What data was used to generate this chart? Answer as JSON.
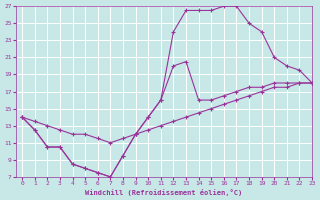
{
  "xlabel": "Windchill (Refroidissement éolien,°C)",
  "bg_color": "#c8e8e8",
  "grid_color": "#ffffff",
  "line_color": "#993399",
  "line1_x": [
    0,
    1,
    2,
    3,
    4,
    5,
    6,
    7,
    8,
    9,
    10,
    11,
    12,
    13,
    14,
    15,
    16,
    17,
    18,
    19,
    20,
    21,
    22,
    23
  ],
  "line1_y": [
    14,
    12.5,
    10.5,
    10.5,
    8.5,
    8.0,
    7.5,
    7.0,
    9.5,
    12.0,
    14.0,
    16.0,
    24.0,
    26.5,
    26.5,
    26.5,
    27.0,
    27.0,
    25.0,
    24.0,
    21.0,
    20.0,
    19.5,
    18.0
  ],
  "line2_x": [
    0,
    1,
    2,
    3,
    4,
    5,
    6,
    7,
    8,
    9,
    10,
    11,
    12,
    13,
    14,
    15,
    16,
    17,
    18,
    19,
    20,
    21,
    22,
    23
  ],
  "line2_y": [
    14,
    12.5,
    10.5,
    10.5,
    8.5,
    8.0,
    7.5,
    7.0,
    9.5,
    12.0,
    14.0,
    16.0,
    20.0,
    20.5,
    16.0,
    16.0,
    16.5,
    17.0,
    17.5,
    17.5,
    18.0,
    18.0,
    18.0,
    18.0
  ],
  "line3_x": [
    0,
    1,
    2,
    3,
    4,
    5,
    6,
    7,
    8,
    9,
    10,
    11,
    12,
    13,
    14,
    15,
    16,
    17,
    18,
    19,
    20,
    21,
    22,
    23
  ],
  "line3_y": [
    14,
    13.5,
    13.0,
    12.5,
    12.0,
    12.0,
    11.5,
    11.0,
    11.5,
    12.0,
    12.5,
    13.0,
    13.5,
    14.0,
    14.5,
    15.0,
    15.5,
    16.0,
    16.5,
    17.0,
    17.5,
    17.5,
    18.0,
    18.0
  ],
  "xlim": [
    -0.5,
    23
  ],
  "ylim": [
    7,
    27
  ],
  "xticks": [
    0,
    1,
    2,
    3,
    4,
    5,
    6,
    7,
    8,
    9,
    10,
    11,
    12,
    13,
    14,
    15,
    16,
    17,
    18,
    19,
    20,
    21,
    22,
    23
  ],
  "yticks": [
    7,
    9,
    11,
    13,
    15,
    17,
    19,
    21,
    23,
    25,
    27
  ]
}
